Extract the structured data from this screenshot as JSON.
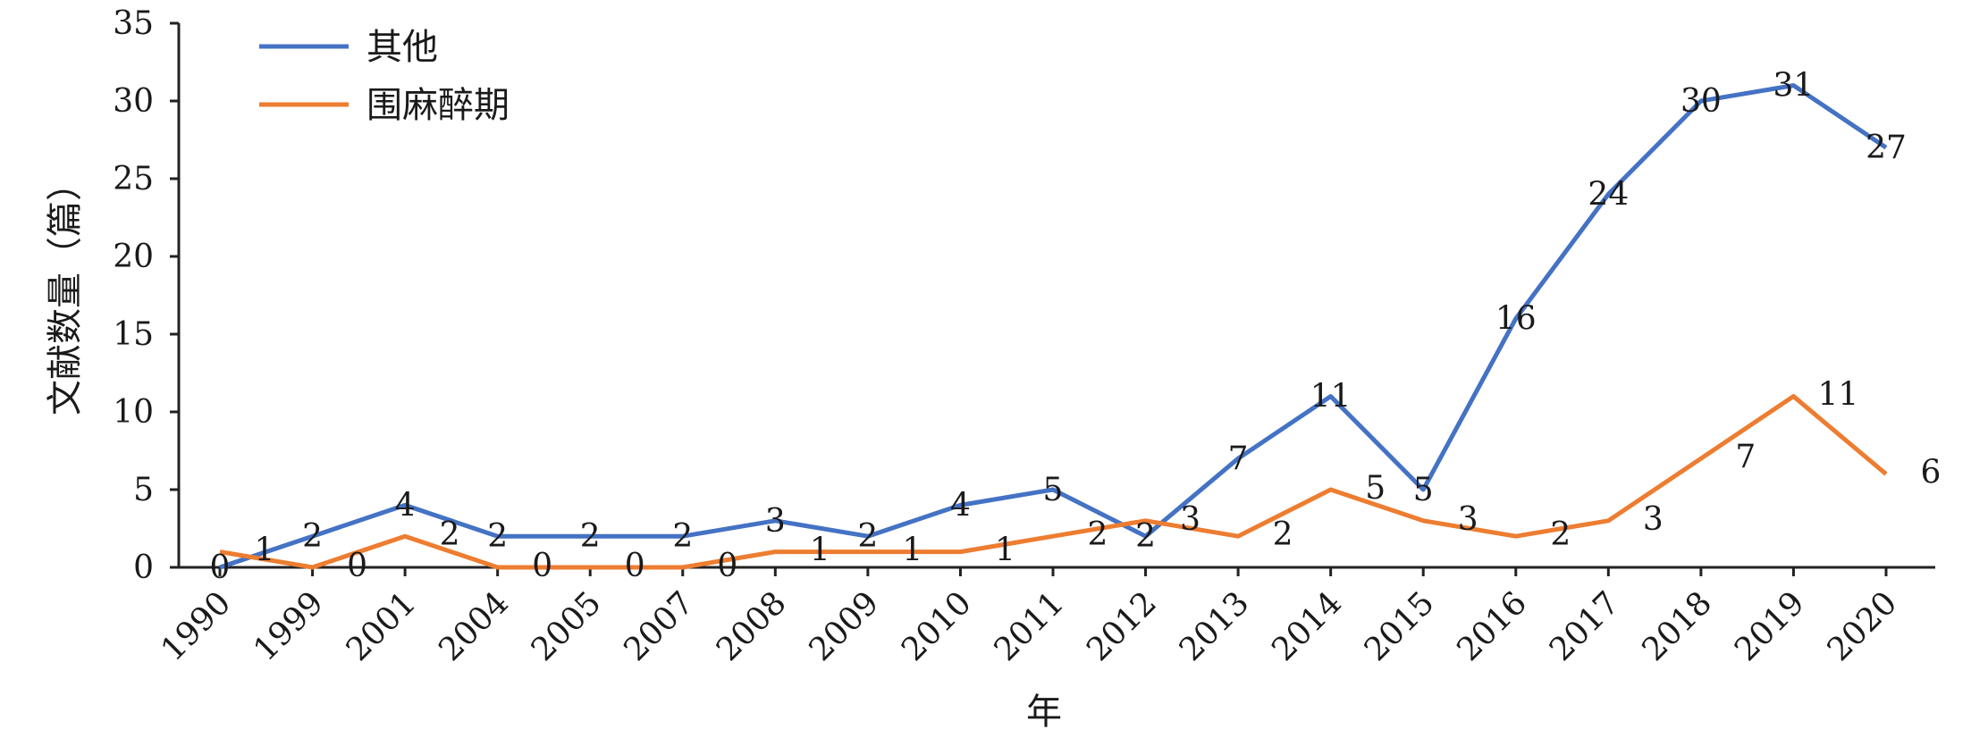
{
  "chart_data": {
    "type": "line",
    "categories": [
      "1990",
      "1999",
      "2001",
      "2004",
      "2005",
      "2007",
      "2008",
      "2009",
      "2010",
      "2011",
      "2012",
      "2013",
      "2014",
      "2015",
      "2016",
      "2017",
      "2018",
      "2019",
      "2020"
    ],
    "series": [
      {
        "name": "其他",
        "color": "#4472C4",
        "values": [
          0,
          2,
          4,
          2,
          2,
          2,
          3,
          2,
          4,
          5,
          2,
          7,
          11,
          5,
          16,
          24,
          30,
          31,
          27
        ]
      },
      {
        "name": "围麻醉期",
        "color": "#ED7D31",
        "values": [
          1,
          0,
          2,
          0,
          0,
          0,
          1,
          1,
          1,
          2,
          3,
          2,
          5,
          3,
          2,
          3,
          7,
          11,
          6
        ]
      }
    ],
    "xlabel": "年",
    "ylabel": "文献数量（篇）",
    "ylim": [
      0,
      35
    ],
    "yticks": [
      0,
      5,
      10,
      15,
      20,
      25,
      30,
      35
    ],
    "grid": false,
    "legend": "top-left"
  }
}
